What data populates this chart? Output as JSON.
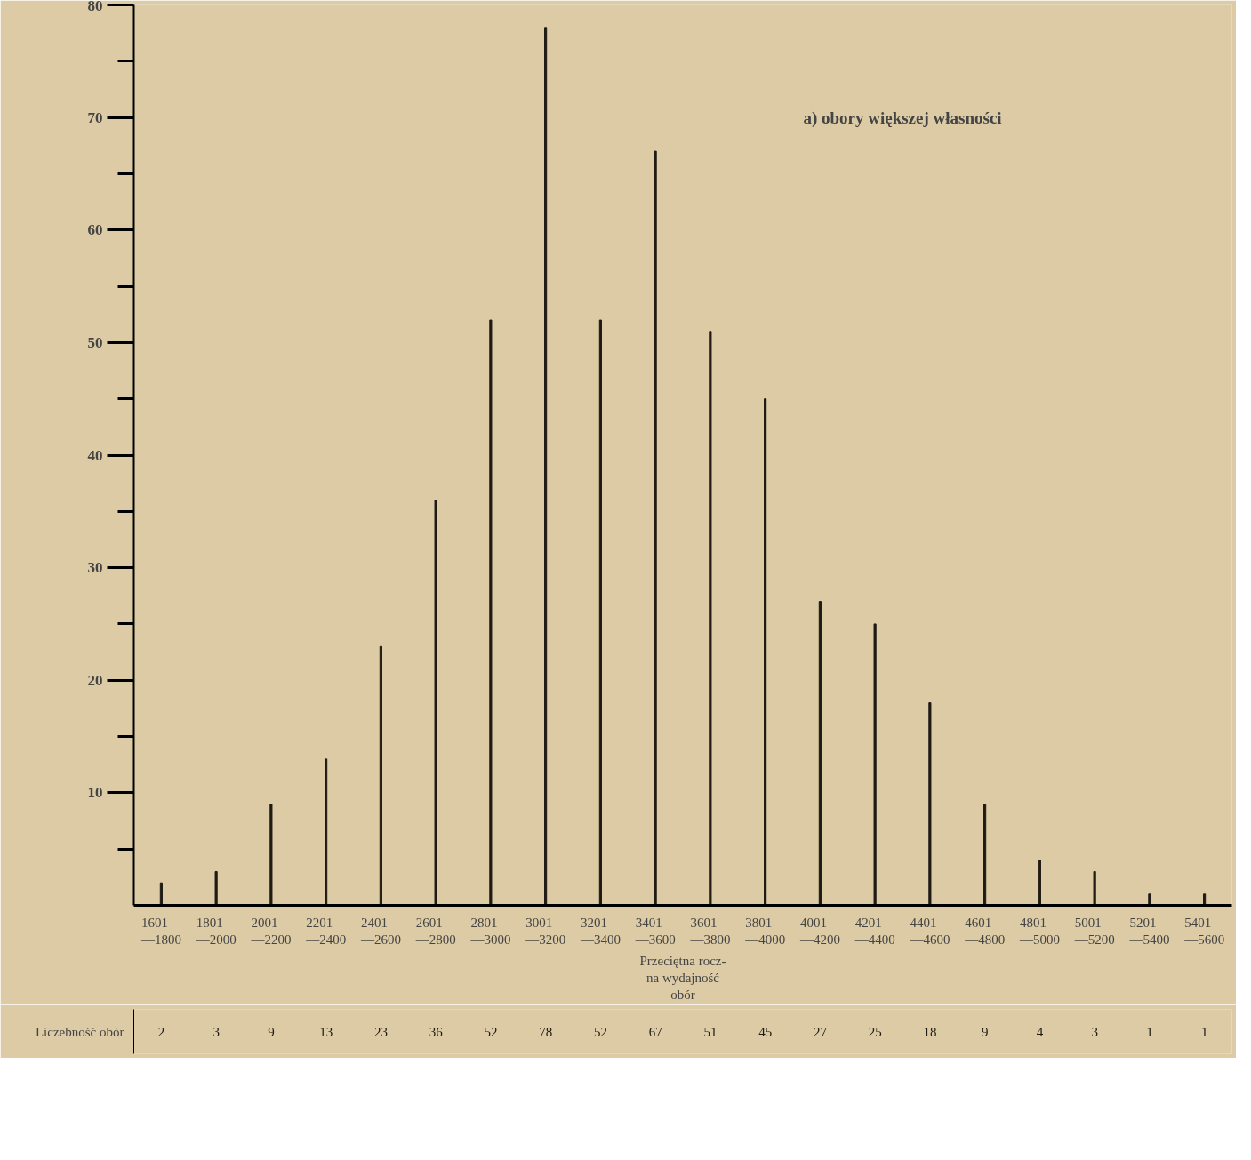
{
  "chart_data": {
    "type": "bar",
    "categories": [
      "1601—\n—1800",
      "1801—\n—2000",
      "2001—\n—2200",
      "2201—\n—2400",
      "2401—\n—2600",
      "2601—\n—2800",
      "2801—\n—3000",
      "3001—\n—3200",
      "3201—\n—3400",
      "3401—\n—3600",
      "3601—\n—3800",
      "3801—\n—4000",
      "4001—\n—4200",
      "4201—\n—4400",
      "4401—\n—4600",
      "4601—\n—4800",
      "4801—\n—5000",
      "5001—\n—5200",
      "5201—\n—5400",
      "5401—\n—5600"
    ],
    "values": [
      2,
      3,
      9,
      13,
      23,
      36,
      52,
      78,
      52,
      67,
      51,
      45,
      27,
      25,
      18,
      9,
      4,
      3,
      1,
      1
    ],
    "color": "#1e1a14",
    "xlabel": "Przeciętna rocz-\nna wydajność\nobór",
    "ylim": [
      0,
      80
    ],
    "yticks": [
      10,
      20,
      30,
      40,
      50,
      60,
      70,
      80
    ],
    "annotations": [
      "a) obory większej własności",
      "Liczebność obór"
    ],
    "data_labels": true,
    "grid": false
  }
}
